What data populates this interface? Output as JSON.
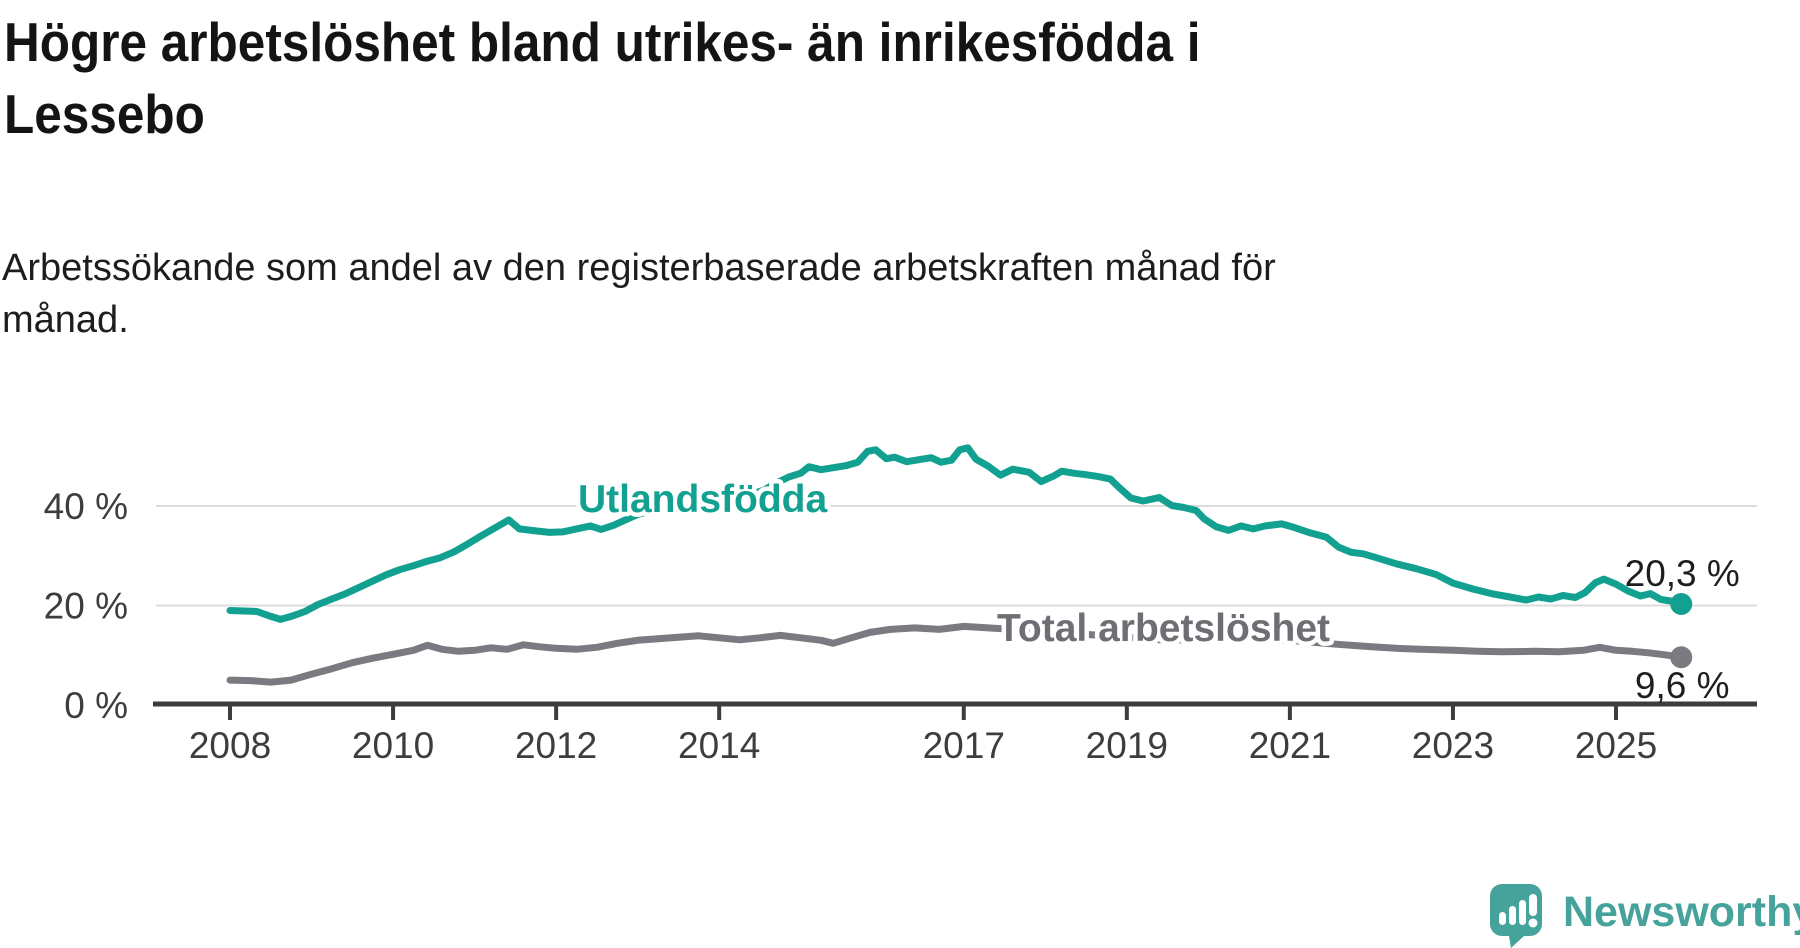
{
  "header": {
    "title_lines": [
      "Högre arbetslöshet bland utrikes- än inrikesfödda i",
      "Lessebo"
    ],
    "subtitle_lines": [
      "Arbetssökande som andel av den registerbaserade arbetskraften månad för",
      "månad."
    ]
  },
  "chart_data": {
    "type": "line",
    "title": "Högre arbetslöshet bland utrikes- än inrikesfödda i Lessebo",
    "subtitle": "Arbetssökande som andel av den registerbaserade arbetskraften månad för månad.",
    "xlabel": "",
    "ylabel": "",
    "grid": "horizontal",
    "legend_position": "inline-labels",
    "x_axis": {
      "range": [
        2008,
        2025.95
      ],
      "ticks": [
        2008,
        2010,
        2012,
        2014,
        2017,
        2019,
        2021,
        2023,
        2025
      ],
      "tick_labels": [
        "2008",
        "2010",
        "2012",
        "2014",
        "2017",
        "2019",
        "2021",
        "2023",
        "2025"
      ]
    },
    "y_axis": {
      "unit": "%",
      "range": [
        0,
        53
      ],
      "ticks": [
        0,
        20,
        40
      ],
      "tick_labels": [
        "0 %",
        "20 %",
        "40 %"
      ]
    },
    "series": [
      {
        "name": "Utlandsfödda",
        "color": "#12a191",
        "label_color": "#12a191",
        "end_value": 20.3,
        "end_label": "20,3 %",
        "points": [
          [
            2008.0,
            19.0
          ],
          [
            2008.17,
            18.9
          ],
          [
            2008.33,
            18.8
          ],
          [
            2008.5,
            17.8
          ],
          [
            2008.62,
            17.2
          ],
          [
            2008.75,
            17.8
          ],
          [
            2008.92,
            18.8
          ],
          [
            2009.08,
            20.2
          ],
          [
            2009.25,
            21.3
          ],
          [
            2009.42,
            22.4
          ],
          [
            2009.58,
            23.6
          ],
          [
            2009.75,
            24.9
          ],
          [
            2009.92,
            26.2
          ],
          [
            2010.08,
            27.2
          ],
          [
            2010.25,
            28.0
          ],
          [
            2010.42,
            28.9
          ],
          [
            2010.58,
            29.6
          ],
          [
            2010.75,
            30.8
          ],
          [
            2010.92,
            32.4
          ],
          [
            2011.08,
            34.0
          ],
          [
            2011.25,
            35.6
          ],
          [
            2011.42,
            37.2
          ],
          [
            2011.55,
            35.4
          ],
          [
            2011.75,
            35.0
          ],
          [
            2011.92,
            34.7
          ],
          [
            2012.08,
            34.8
          ],
          [
            2012.25,
            35.4
          ],
          [
            2012.42,
            36.0
          ],
          [
            2012.55,
            35.3
          ],
          [
            2012.7,
            36.1
          ],
          [
            2012.85,
            37.2
          ],
          [
            2013.0,
            38.3
          ],
          [
            2013.2,
            39.2
          ],
          [
            2013.4,
            40.0
          ],
          [
            2013.6,
            40.6
          ],
          [
            2013.8,
            41.2
          ],
          [
            2014.0,
            41.7
          ],
          [
            2014.2,
            42.0
          ],
          [
            2014.4,
            42.4
          ],
          [
            2014.55,
            43.2
          ],
          [
            2014.7,
            44.6
          ],
          [
            2014.85,
            45.8
          ],
          [
            2015.0,
            46.6
          ],
          [
            2015.1,
            47.9
          ],
          [
            2015.25,
            47.3
          ],
          [
            2015.4,
            47.7
          ],
          [
            2015.55,
            48.1
          ],
          [
            2015.7,
            48.8
          ],
          [
            2015.82,
            51.0
          ],
          [
            2015.92,
            51.3
          ],
          [
            2016.05,
            49.5
          ],
          [
            2016.15,
            49.8
          ],
          [
            2016.3,
            48.9
          ],
          [
            2016.45,
            49.3
          ],
          [
            2016.6,
            49.7
          ],
          [
            2016.72,
            48.8
          ],
          [
            2016.85,
            49.2
          ],
          [
            2016.95,
            51.3
          ],
          [
            2017.05,
            51.7
          ],
          [
            2017.15,
            49.4
          ],
          [
            2017.3,
            48.0
          ],
          [
            2017.45,
            46.2
          ],
          [
            2017.6,
            47.4
          ],
          [
            2017.8,
            46.8
          ],
          [
            2017.95,
            44.9
          ],
          [
            2018.1,
            46.0
          ],
          [
            2018.2,
            47.0
          ],
          [
            2018.35,
            46.6
          ],
          [
            2018.5,
            46.3
          ],
          [
            2018.65,
            45.9
          ],
          [
            2018.8,
            45.4
          ],
          [
            2018.9,
            43.8
          ],
          [
            2019.05,
            41.6
          ],
          [
            2019.2,
            41.0
          ],
          [
            2019.4,
            41.7
          ],
          [
            2019.55,
            40.1
          ],
          [
            2019.7,
            39.7
          ],
          [
            2019.85,
            39.1
          ],
          [
            2019.95,
            37.4
          ],
          [
            2020.1,
            35.8
          ],
          [
            2020.25,
            35.1
          ],
          [
            2020.4,
            36.0
          ],
          [
            2020.55,
            35.4
          ],
          [
            2020.7,
            36.0
          ],
          [
            2020.9,
            36.4
          ],
          [
            2021.05,
            35.7
          ],
          [
            2021.25,
            34.6
          ],
          [
            2021.45,
            33.7
          ],
          [
            2021.6,
            31.7
          ],
          [
            2021.75,
            30.7
          ],
          [
            2021.9,
            30.4
          ],
          [
            2022.1,
            29.4
          ],
          [
            2022.3,
            28.4
          ],
          [
            2022.55,
            27.4
          ],
          [
            2022.8,
            26.2
          ],
          [
            2023.0,
            24.5
          ],
          [
            2023.25,
            23.3
          ],
          [
            2023.5,
            22.3
          ],
          [
            2023.7,
            21.7
          ],
          [
            2023.9,
            21.1
          ],
          [
            2024.05,
            21.7
          ],
          [
            2024.2,
            21.3
          ],
          [
            2024.35,
            22.0
          ],
          [
            2024.5,
            21.6
          ],
          [
            2024.62,
            22.6
          ],
          [
            2024.75,
            24.6
          ],
          [
            2024.85,
            25.3
          ],
          [
            2025.0,
            24.3
          ],
          [
            2025.15,
            22.9
          ],
          [
            2025.3,
            21.9
          ],
          [
            2025.42,
            22.4
          ],
          [
            2025.55,
            21.2
          ],
          [
            2025.67,
            20.9
          ],
          [
            2025.8,
            20.3
          ]
        ]
      },
      {
        "name": "Total arbetslöshet",
        "color": "#7a7a80",
        "label_color": "#6e6e74",
        "end_value": 9.6,
        "end_label": "9,6 %",
        "points": [
          [
            2008.0,
            5.0
          ],
          [
            2008.25,
            4.9
          ],
          [
            2008.5,
            4.6
          ],
          [
            2008.75,
            5.0
          ],
          [
            2009.0,
            6.2
          ],
          [
            2009.25,
            7.3
          ],
          [
            2009.5,
            8.5
          ],
          [
            2009.75,
            9.4
          ],
          [
            2010.0,
            10.2
          ],
          [
            2010.25,
            11.0
          ],
          [
            2010.42,
            12.0
          ],
          [
            2010.6,
            11.2
          ],
          [
            2010.8,
            10.8
          ],
          [
            2011.0,
            11.0
          ],
          [
            2011.2,
            11.5
          ],
          [
            2011.4,
            11.2
          ],
          [
            2011.6,
            12.1
          ],
          [
            2011.8,
            11.7
          ],
          [
            2012.0,
            11.4
          ],
          [
            2012.25,
            11.2
          ],
          [
            2012.5,
            11.6
          ],
          [
            2012.75,
            12.4
          ],
          [
            2013.0,
            13.0
          ],
          [
            2013.25,
            13.3
          ],
          [
            2013.5,
            13.6
          ],
          [
            2013.75,
            13.9
          ],
          [
            2014.0,
            13.5
          ],
          [
            2014.25,
            13.1
          ],
          [
            2014.5,
            13.5
          ],
          [
            2014.75,
            14.0
          ],
          [
            2015.0,
            13.5
          ],
          [
            2015.25,
            13.0
          ],
          [
            2015.4,
            12.4
          ],
          [
            2015.6,
            13.4
          ],
          [
            2015.85,
            14.6
          ],
          [
            2016.1,
            15.2
          ],
          [
            2016.4,
            15.5
          ],
          [
            2016.7,
            15.2
          ],
          [
            2017.0,
            15.8
          ],
          [
            2017.3,
            15.5
          ],
          [
            2017.6,
            15.2
          ],
          [
            2018.0,
            14.8
          ],
          [
            2018.5,
            14.2
          ],
          [
            2019.0,
            13.6
          ],
          [
            2019.5,
            13.0
          ],
          [
            2020.0,
            13.3
          ],
          [
            2020.5,
            13.6
          ],
          [
            2021.0,
            13.0
          ],
          [
            2021.5,
            12.3
          ],
          [
            2022.0,
            11.7
          ],
          [
            2022.3,
            11.4
          ],
          [
            2022.6,
            11.2
          ],
          [
            2023.0,
            11.0
          ],
          [
            2023.3,
            10.8
          ],
          [
            2023.6,
            10.7
          ],
          [
            2024.0,
            10.8
          ],
          [
            2024.3,
            10.7
          ],
          [
            2024.6,
            11.0
          ],
          [
            2024.8,
            11.6
          ],
          [
            2025.0,
            11.0
          ],
          [
            2025.2,
            10.8
          ],
          [
            2025.4,
            10.5
          ],
          [
            2025.6,
            10.1
          ],
          [
            2025.8,
            9.6
          ]
        ]
      }
    ]
  },
  "logo": {
    "text": "Newsworthy",
    "color": "#45a39b",
    "icon": "newsworthy-speech-bubble-chart-icon"
  },
  "colors": {
    "background": "#ffffff",
    "title": "#141414",
    "subtitle": "#1d1d1f",
    "axis_text": "#3c3c41",
    "axis_line": "#3c3c41",
    "gridline": "#dcdcdc",
    "value_label": "#1e1e1e",
    "teal": "#12a191",
    "gray": "#7a7a80"
  }
}
